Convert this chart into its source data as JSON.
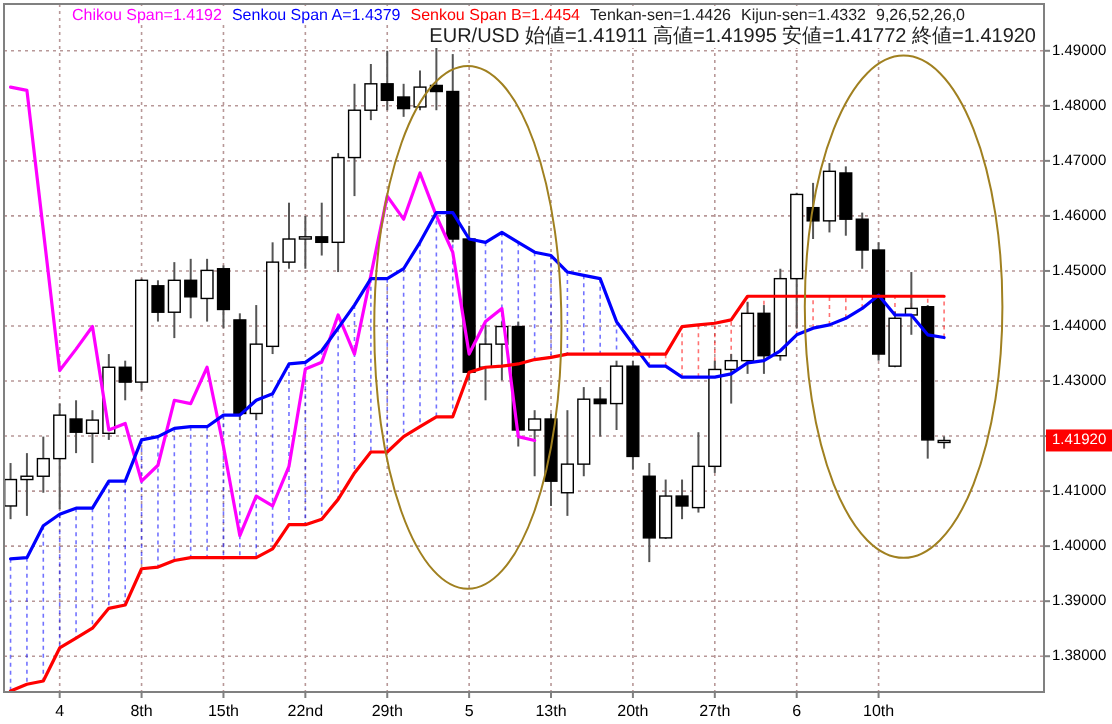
{
  "chart_data": {
    "type": "candlestick",
    "categories": [
      null,
      null,
      null,
      "4",
      null,
      null,
      null,
      null,
      "8th",
      null,
      null,
      null,
      null,
      "15th",
      null,
      null,
      null,
      null,
      "22nd",
      null,
      null,
      null,
      null,
      "29th",
      null,
      null,
      null,
      null,
      "5",
      null,
      null,
      null,
      null,
      "13th",
      null,
      null,
      null,
      null,
      "20th",
      null,
      null,
      null,
      null,
      "27th",
      null,
      null,
      null,
      null,
      "6",
      null,
      null,
      null,
      null,
      "10th",
      null,
      null,
      null,
      null
    ],
    "ohlc": [
      [
        1.4073,
        1.4151,
        1.4049,
        1.4121
      ],
      [
        1.4121,
        1.4169,
        1.4055,
        1.4127
      ],
      [
        1.4127,
        1.4199,
        1.4097,
        1.4159
      ],
      [
        1.4159,
        1.4259,
        1.4067,
        1.4238
      ],
      [
        1.4231,
        1.4265,
        1.4169,
        1.4207
      ],
      [
        1.4205,
        1.4247,
        1.4151,
        1.4229
      ],
      [
        1.4205,
        1.4349,
        1.4193,
        1.4325
      ],
      [
        1.4325,
        1.4337,
        1.4265,
        1.4298
      ],
      [
        1.4298,
        1.4486,
        1.4283,
        1.4483
      ],
      [
        1.4473,
        1.4483,
        1.4408,
        1.4425
      ],
      [
        1.4425,
        1.4516,
        1.4378,
        1.4483
      ],
      [
        1.4483,
        1.4522,
        1.4414,
        1.4453
      ],
      [
        1.445,
        1.4522,
        1.4408,
        1.4501
      ],
      [
        1.4504,
        1.451,
        1.4396,
        1.443
      ],
      [
        1.4411,
        1.4423,
        1.4229,
        1.4241
      ],
      [
        1.4241,
        1.4438,
        1.4229,
        1.4367
      ],
      [
        1.4363,
        1.4552,
        1.4349,
        1.4516
      ],
      [
        1.4516,
        1.4624,
        1.4504,
        1.4558
      ],
      [
        1.4558,
        1.46,
        1.4504,
        1.4562
      ],
      [
        1.4562,
        1.4624,
        1.4528,
        1.4552
      ],
      [
        1.4552,
        1.4714,
        1.4498,
        1.4706
      ],
      [
        1.4706,
        1.484,
        1.4636,
        1.4792
      ],
      [
        1.4792,
        1.4876,
        1.4774,
        1.484
      ],
      [
        1.484,
        1.49,
        1.4792,
        1.481
      ],
      [
        1.4816,
        1.484,
        1.478,
        1.4795
      ],
      [
        1.4798,
        1.4864,
        1.4792,
        1.4834
      ],
      [
        1.4837,
        1.491,
        1.4792,
        1.4826
      ],
      [
        1.4826,
        1.4894,
        1.4552,
        1.4558
      ],
      [
        1.4558,
        1.4582,
        1.4301,
        1.4316
      ],
      [
        1.4325,
        1.4402,
        1.4265,
        1.4367
      ],
      [
        1.4367,
        1.4408,
        1.4301,
        1.4399
      ],
      [
        1.4399,
        1.4408,
        1.4181,
        1.4211
      ],
      [
        1.4211,
        1.4247,
        1.4127,
        1.4231
      ],
      [
        1.4231,
        1.4241,
        1.4073,
        1.4118
      ],
      [
        1.4097,
        1.4247,
        1.4055,
        1.4149
      ],
      [
        1.4149,
        1.4289,
        1.4127,
        1.4267
      ],
      [
        1.4267,
        1.4289,
        1.4199,
        1.4259
      ],
      [
        1.4259,
        1.4337,
        1.4211,
        1.4327
      ],
      [
        1.4327,
        1.4337,
        1.4139,
        1.4163
      ],
      [
        1.4127,
        1.4151,
        1.3971,
        1.4015
      ],
      [
        1.4015,
        1.4121,
        1.4013,
        1.4091
      ],
      [
        1.4091,
        1.4121,
        1.4049,
        1.4073
      ],
      [
        1.407,
        1.4207,
        1.4061,
        1.4145
      ],
      [
        1.4145,
        1.4337,
        1.4133,
        1.4321
      ],
      [
        1.4321,
        1.4349,
        1.4259,
        1.4337
      ],
      [
        1.4337,
        1.4444,
        1.4313,
        1.4423
      ],
      [
        1.4423,
        1.4438,
        1.4313,
        1.4346
      ],
      [
        1.4346,
        1.4504,
        1.4337,
        1.4486
      ],
      [
        1.4486,
        1.4642,
        1.4396,
        1.4639
      ],
      [
        1.4615,
        1.466,
        1.4558,
        1.4591
      ],
      [
        1.4591,
        1.4696,
        1.457,
        1.4681
      ],
      [
        1.4678,
        1.469,
        1.4564,
        1.4594
      ],
      [
        1.4594,
        1.4606,
        1.4504,
        1.4538
      ],
      [
        1.4538,
        1.4552,
        1.4337,
        1.4349
      ],
      [
        1.4327,
        1.4426,
        1.4325,
        1.4414
      ],
      [
        1.442,
        1.4498,
        1.4384,
        1.4432
      ],
      [
        1.4435,
        1.4438,
        1.4159,
        1.4193
      ],
      [
        1.41911,
        1.41995,
        1.41772,
        1.4192
      ]
    ],
    "series": [
      {
        "type": "line",
        "name": "Chikou Span=1.4192",
        "color": "#ff00ff",
        "values": [
          1.4834,
          1.4828,
          1.4574,
          1.4319,
          1.4358,
          1.4399,
          1.4211,
          1.4223,
          1.4118,
          1.4147,
          1.4265,
          1.4259,
          1.4325,
          1.4181,
          1.4019,
          1.4091,
          1.4073,
          1.4145,
          1.4322,
          1.4334,
          1.442,
          1.4349,
          1.4492,
          1.4636,
          1.4594,
          1.4678,
          1.46,
          1.4534,
          1.4349,
          1.4408,
          1.4432,
          1.4199,
          1.4192,
          null,
          null,
          null,
          null,
          null,
          null,
          null,
          null,
          null,
          null,
          null,
          null,
          null,
          null,
          null,
          null,
          null,
          null,
          null,
          null,
          null,
          null,
          null,
          null,
          null
        ]
      },
      {
        "type": "line",
        "name": "Senkou Span A=1.4379",
        "color": "#0000ff",
        "values": [
          1.3977,
          1.3979,
          1.4037,
          1.4058,
          1.4069,
          1.4069,
          1.4118,
          1.4118,
          1.4193,
          1.4199,
          1.4214,
          1.4217,
          1.4217,
          1.4238,
          1.4238,
          1.4265,
          1.4277,
          1.4331,
          1.4334,
          1.4355,
          1.4396,
          1.4438,
          1.4486,
          1.4486,
          1.4504,
          1.4552,
          1.4606,
          1.4606,
          1.4558,
          1.4552,
          1.457,
          1.4552,
          1.4534,
          1.4528,
          1.4498,
          1.4492,
          1.4486,
          1.4408,
          1.4367,
          1.4327,
          1.4327,
          1.4307,
          1.4307,
          1.4307,
          1.4313,
          1.4333,
          1.4337,
          1.4355,
          1.4384,
          1.4396,
          1.4402,
          1.4414,
          1.4432,
          1.4456,
          1.442,
          1.442,
          1.4384,
          1.4379
        ]
      },
      {
        "type": "line",
        "name": "Senkou Span B=1.4454",
        "color": "#ff0000",
        "values": [
          1.3737,
          1.3749,
          1.3755,
          1.3815,
          1.3833,
          1.3851,
          1.3887,
          1.3893,
          1.3959,
          1.3962,
          1.3974,
          1.3979,
          1.3979,
          1.3979,
          1.3979,
          1.3979,
          1.3995,
          1.4039,
          1.4039,
          1.4049,
          1.4085,
          1.4133,
          1.4171,
          1.4171,
          1.4199,
          1.4217,
          1.4235,
          1.4235,
          1.4316,
          1.4325,
          1.4327,
          1.4331,
          1.4339,
          1.4343,
          1.4349,
          1.4349,
          1.4349,
          1.4349,
          1.4349,
          1.4349,
          1.4349,
          1.4399,
          1.4402,
          1.4405,
          1.4411,
          1.4454,
          1.4454,
          1.4454,
          1.4454,
          1.4454,
          1.4454,
          1.4454,
          1.4454,
          1.4454,
          1.4454,
          1.4454,
          1.4454,
          1.4454
        ]
      }
    ],
    "ylim": [
      1.3735,
      1.4985
    ],
    "yticks": [
      {
        "value": 1.38,
        "label": "1.38000"
      },
      {
        "value": 1.39,
        "label": "1.39000"
      },
      {
        "value": 1.4,
        "label": "1.40000"
      },
      {
        "value": 1.41,
        "label": "1.41000"
      },
      {
        "value": 1.42,
        "label": null
      },
      {
        "value": 1.43,
        "label": "1.43000"
      },
      {
        "value": 1.44,
        "label": "1.44000"
      },
      {
        "value": 1.45,
        "label": "1.45000"
      },
      {
        "value": 1.46,
        "label": "1.46000"
      },
      {
        "value": 1.47,
        "label": "1.47000"
      },
      {
        "value": 1.48,
        "label": "1.48000"
      },
      {
        "value": 1.49,
        "label": "1.49000"
      }
    ],
    "annotations": [
      "Tenkan-sen=1.4426",
      "Kijun-sen=1.4332",
      "9,26,52,26,0",
      "EUR/USD 始値=1.41911 高値=1.41995 安値=1.41772 終値=1.41920",
      "1.41920"
    ],
    "grid": true,
    "legend": "top"
  }
}
